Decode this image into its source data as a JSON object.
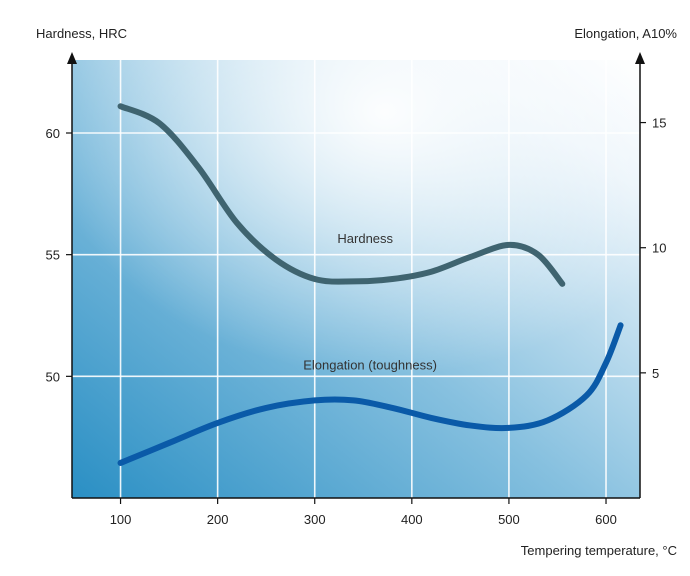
{
  "chart_data": {
    "type": "line",
    "xlabel": "Tempering temperature, °C",
    "ylabel_left": "Hardness, HRC",
    "ylabel_right": "Elongation, A10%",
    "x_ticks": [
      100,
      200,
      300,
      400,
      500,
      600
    ],
    "y_left_ticks": [
      50,
      55,
      60
    ],
    "y_right_ticks": [
      5,
      10,
      15
    ],
    "xlim": [
      50,
      635
    ],
    "ylim_left": [
      45,
      63
    ],
    "ylim_right": [
      0,
      17.5
    ],
    "grid": true,
    "series": [
      {
        "name": "Hardness",
        "axis": "left",
        "color": "#3f6470",
        "points": [
          [
            100,
            61.1
          ],
          [
            140,
            60.4
          ],
          [
            180,
            58.6
          ],
          [
            220,
            56.3
          ],
          [
            260,
            54.8
          ],
          [
            300,
            54.0
          ],
          [
            340,
            53.9
          ],
          [
            380,
            54.0
          ],
          [
            420,
            54.3
          ],
          [
            460,
            54.9
          ],
          [
            500,
            55.4
          ],
          [
            530,
            55.0
          ],
          [
            555,
            53.8
          ]
        ]
      },
      {
        "name": "Elongation (toughness)",
        "axis": "right",
        "color": "#0a5aa8",
        "points": [
          [
            100,
            1.4
          ],
          [
            150,
            2.2
          ],
          [
            200,
            3.0
          ],
          [
            250,
            3.6
          ],
          [
            300,
            3.9
          ],
          [
            340,
            3.9
          ],
          [
            380,
            3.6
          ],
          [
            420,
            3.2
          ],
          [
            460,
            2.9
          ],
          [
            500,
            2.8
          ],
          [
            540,
            3.1
          ],
          [
            580,
            4.1
          ],
          [
            600,
            5.4
          ],
          [
            615,
            6.9
          ]
        ]
      }
    ]
  }
}
